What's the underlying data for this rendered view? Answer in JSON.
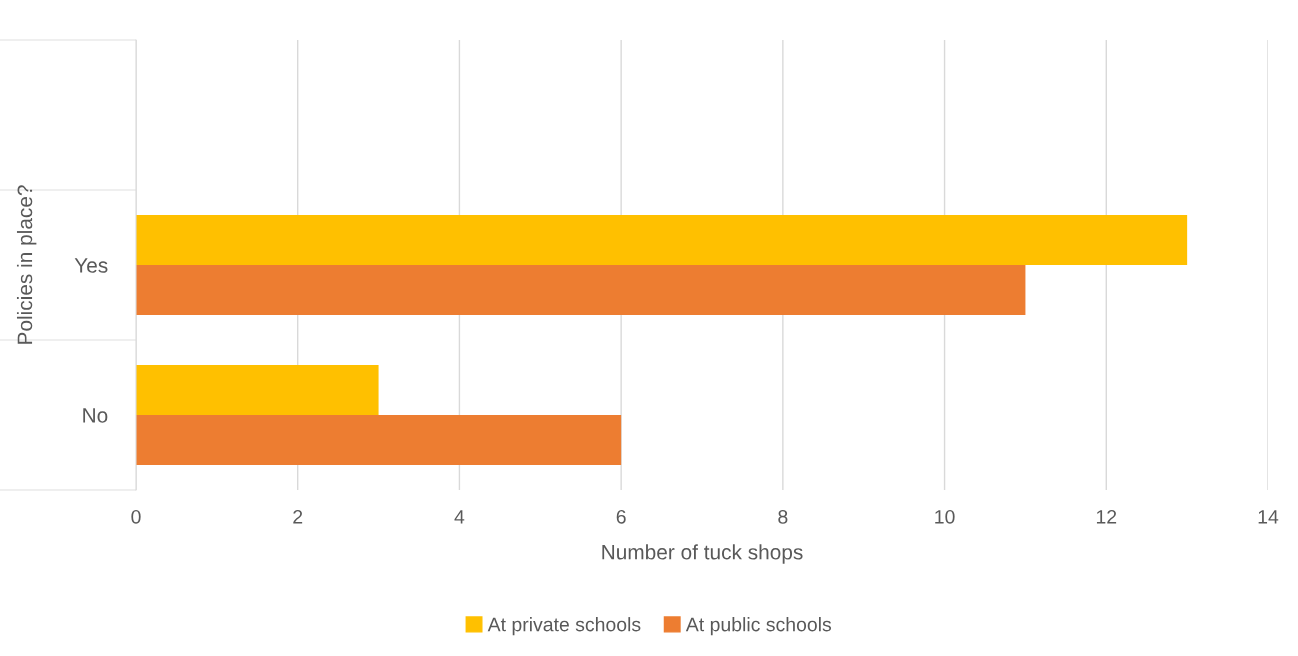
{
  "chart_data": {
    "type": "bar",
    "orientation": "horizontal",
    "xlabel": "Number of tuck shops",
    "ylabel": "Policies in place?",
    "categories": [
      null,
      "Yes",
      "No"
    ],
    "series": [
      {
        "name": "At private schools",
        "color": "#ffc000",
        "values": [
          null,
          13,
          3
        ]
      },
      {
        "name": "At public schools",
        "color": "#ed7d31",
        "values": [
          null,
          11,
          6
        ]
      }
    ],
    "xlim": [
      0,
      14
    ],
    "xticks": [
      0,
      2,
      4,
      6,
      8,
      10,
      12,
      14
    ],
    "grid": "x",
    "legend": "bottom"
  }
}
